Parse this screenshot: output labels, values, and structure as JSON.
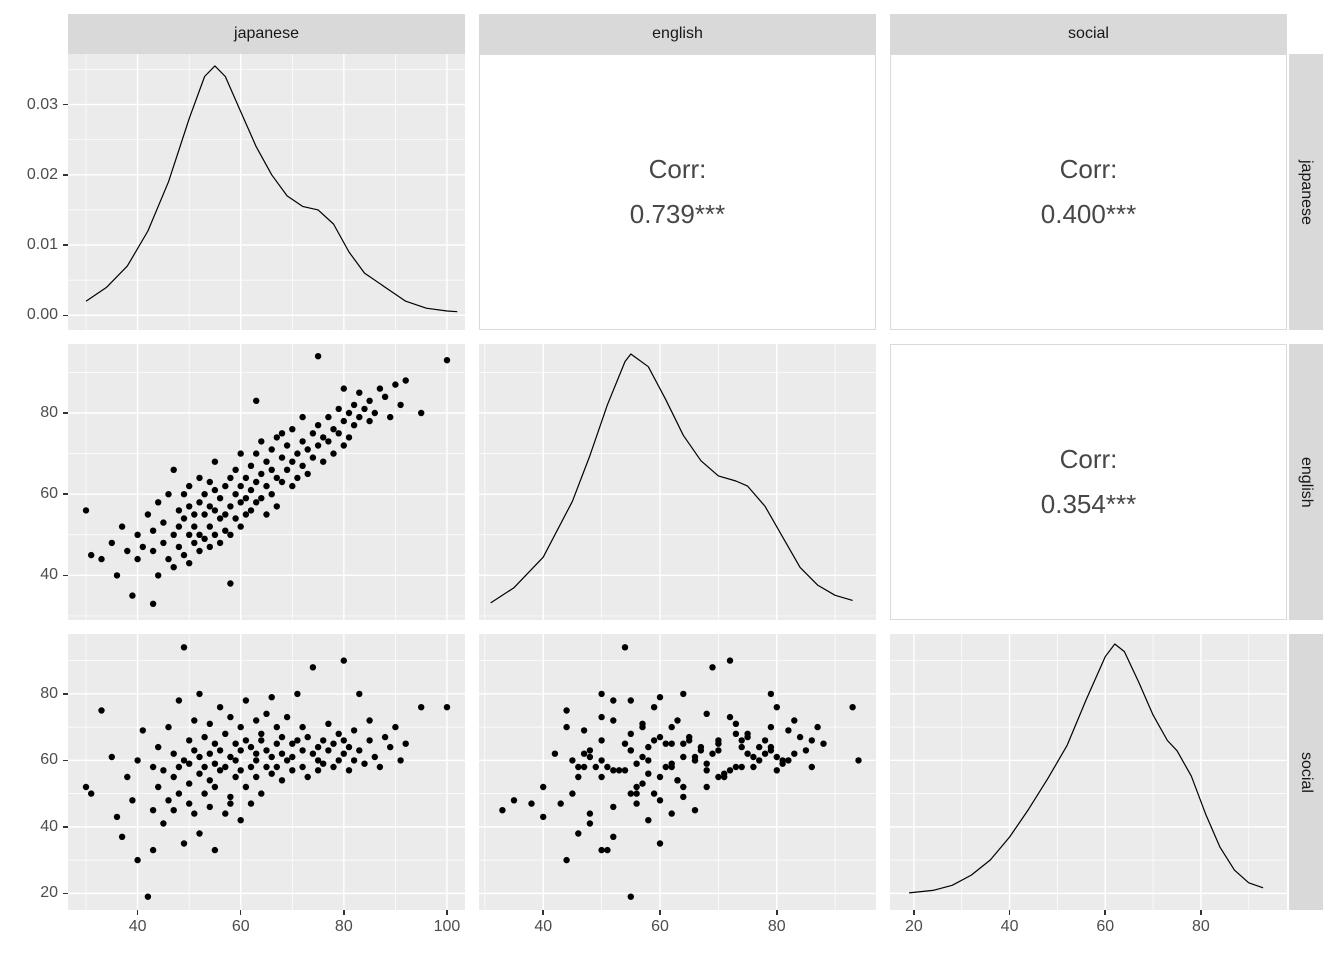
{
  "strips": {
    "cols": [
      "japanese",
      "english",
      "social"
    ],
    "rows": [
      "japanese",
      "english",
      "social"
    ]
  },
  "colors": {
    "panel_bg": "#EBEBEB",
    "strip_bg": "#D9D9D9",
    "grid_major": "#FFFFFF",
    "grid_minor": "#FFFFFF",
    "point": "#000000",
    "density_line": "#000000",
    "corr_text": "#474747",
    "tick_text": "#4D4D4D"
  },
  "chart_data": {
    "type": "scatter",
    "subtype": "scatterplot-matrix (ggpairs)",
    "variables": [
      "japanese",
      "english",
      "social"
    ],
    "grid": "on",
    "axes": {
      "japanese": {
        "min": 26.5,
        "max": 103.5,
        "tick_values": [
          40,
          60,
          80,
          100
        ],
        "tick_labels": [
          "40",
          "60",
          "80",
          "100"
        ]
      },
      "english": {
        "min": 29,
        "max": 97,
        "tick_values": [
          40,
          60,
          80
        ],
        "tick_labels": [
          "40",
          "60",
          "80"
        ]
      },
      "social": {
        "min": 15,
        "max": 98,
        "tick_values": [
          20,
          40,
          60,
          80
        ],
        "tick_labels": [
          "20",
          "40",
          "60",
          "80"
        ]
      },
      "density_japanese": {
        "min": -0.0021,
        "max": 0.0372,
        "tick_values": [
          0,
          0.01,
          0.02,
          0.03
        ],
        "tick_labels": [
          "0.00",
          "0.01",
          "0.02",
          "0.03"
        ]
      }
    },
    "correlations": [
      {
        "row": "japanese",
        "col": "english",
        "label": "Corr:",
        "value": "0.739***"
      },
      {
        "row": "japanese",
        "col": "social",
        "label": "Corr:",
        "value": "0.400***"
      },
      {
        "row": "english",
        "col": "social",
        "label": "Corr:",
        "value": "0.354***"
      }
    ],
    "densities": {
      "japanese": [
        [
          30,
          0.002
        ],
        [
          34,
          0.004
        ],
        [
          38,
          0.007
        ],
        [
          42,
          0.012
        ],
        [
          46,
          0.019
        ],
        [
          50,
          0.028
        ],
        [
          53,
          0.034
        ],
        [
          55,
          0.0355
        ],
        [
          57,
          0.034
        ],
        [
          60,
          0.029
        ],
        [
          63,
          0.024
        ],
        [
          66,
          0.02
        ],
        [
          69,
          0.017
        ],
        [
          72,
          0.0155
        ],
        [
          75,
          0.015
        ],
        [
          78,
          0.013
        ],
        [
          81,
          0.009
        ],
        [
          84,
          0.006
        ],
        [
          88,
          0.004
        ],
        [
          92,
          0.002
        ],
        [
          96,
          0.001
        ],
        [
          100,
          0.0006
        ],
        [
          102,
          0.0005
        ]
      ],
      "english": [
        [
          31,
          0.02
        ],
        [
          35,
          0.08
        ],
        [
          40,
          0.2
        ],
        [
          45,
          0.42
        ],
        [
          48,
          0.6
        ],
        [
          51,
          0.8
        ],
        [
          54,
          0.97
        ],
        [
          55,
          1.0
        ],
        [
          58,
          0.95
        ],
        [
          61,
          0.82
        ],
        [
          64,
          0.68
        ],
        [
          67,
          0.58
        ],
        [
          70,
          0.52
        ],
        [
          73,
          0.5
        ],
        [
          75,
          0.48
        ],
        [
          78,
          0.4
        ],
        [
          81,
          0.28
        ],
        [
          84,
          0.16
        ],
        [
          87,
          0.09
        ],
        [
          90,
          0.05
        ],
        [
          93,
          0.03
        ]
      ],
      "social": [
        [
          19,
          0.02
        ],
        [
          24,
          0.03
        ],
        [
          28,
          0.05
        ],
        [
          32,
          0.09
        ],
        [
          36,
          0.15
        ],
        [
          40,
          0.24
        ],
        [
          44,
          0.35
        ],
        [
          48,
          0.47
        ],
        [
          52,
          0.6
        ],
        [
          56,
          0.78
        ],
        [
          60,
          0.95
        ],
        [
          62,
          1.0
        ],
        [
          64,
          0.97
        ],
        [
          67,
          0.85
        ],
        [
          70,
          0.72
        ],
        [
          73,
          0.62
        ],
        [
          75,
          0.58
        ],
        [
          78,
          0.48
        ],
        [
          81,
          0.33
        ],
        [
          84,
          0.2
        ],
        [
          87,
          0.11
        ],
        [
          90,
          0.06
        ],
        [
          93,
          0.04
        ]
      ]
    },
    "points_columns": [
      "japanese",
      "english",
      "social"
    ],
    "points": [
      [
        30,
        56,
        52
      ],
      [
        31,
        45,
        50
      ],
      [
        33,
        44,
        75
      ],
      [
        35,
        48,
        61
      ],
      [
        36,
        40,
        43
      ],
      [
        37,
        52,
        37
      ],
      [
        38,
        46,
        55
      ],
      [
        39,
        35,
        48
      ],
      [
        40,
        50,
        60
      ],
      [
        40,
        44,
        30
      ],
      [
        41,
        47,
        69
      ],
      [
        42,
        55,
        19
      ],
      [
        43,
        33,
        45
      ],
      [
        43,
        46,
        58
      ],
      [
        43,
        51,
        33
      ],
      [
        44,
        40,
        52
      ],
      [
        44,
        58,
        64
      ],
      [
        45,
        48,
        41
      ],
      [
        45,
        53,
        57
      ],
      [
        46,
        44,
        70
      ],
      [
        46,
        60,
        48
      ],
      [
        47,
        50,
        55
      ],
      [
        47,
        42,
        62
      ],
      [
        47,
        66,
        45
      ],
      [
        48,
        52,
        78
      ],
      [
        48,
        47,
        58
      ],
      [
        48,
        56,
        50
      ],
      [
        49,
        54,
        94
      ],
      [
        49,
        45,
        60
      ],
      [
        49,
        60,
        35
      ],
      [
        50,
        50,
        66
      ],
      [
        50,
        57,
        53
      ],
      [
        50,
        43,
        47
      ],
      [
        50,
        62,
        59
      ],
      [
        51,
        55,
        63
      ],
      [
        51,
        48,
        44
      ],
      [
        51,
        52,
        72
      ],
      [
        52,
        58,
        56
      ],
      [
        52,
        50,
        80
      ],
      [
        52,
        64,
        61
      ],
      [
        52,
        46,
        38
      ],
      [
        53,
        55,
        50
      ],
      [
        53,
        60,
        67
      ],
      [
        53,
        49,
        58
      ],
      [
        54,
        52,
        46
      ],
      [
        54,
        57,
        71
      ],
      [
        54,
        63,
        54
      ],
      [
        54,
        47,
        62
      ],
      [
        55,
        56,
        59
      ],
      [
        55,
        50,
        33
      ],
      [
        55,
        61,
        65
      ],
      [
        55,
        68,
        52
      ],
      [
        56,
        54,
        57
      ],
      [
        56,
        59,
        76
      ],
      [
        56,
        48,
        63
      ],
      [
        57,
        62,
        44
      ],
      [
        57,
        55,
        68
      ],
      [
        57,
        51,
        58
      ],
      [
        58,
        38,
        47
      ],
      [
        58,
        57,
        61
      ],
      [
        58,
        64,
        49
      ],
      [
        58,
        50,
        73
      ],
      [
        59,
        60,
        55
      ],
      [
        59,
        54,
        65
      ],
      [
        59,
        66,
        60
      ],
      [
        60,
        58,
        42
      ],
      [
        60,
        62,
        70
      ],
      [
        60,
        52,
        57
      ],
      [
        60,
        70,
        63
      ],
      [
        61,
        59,
        66
      ],
      [
        61,
        64,
        52
      ],
      [
        61,
        55,
        78
      ],
      [
        62,
        61,
        58
      ],
      [
        62,
        67,
        64
      ],
      [
        62,
        56,
        47
      ],
      [
        63,
        63,
        72
      ],
      [
        63,
        58,
        60
      ],
      [
        63,
        70,
        55
      ],
      [
        63,
        83,
        62
      ],
      [
        64,
        65,
        66
      ],
      [
        64,
        59,
        50
      ],
      [
        64,
        73,
        68
      ],
      [
        65,
        62,
        58
      ],
      [
        65,
        68,
        74
      ],
      [
        65,
        55,
        63
      ],
      [
        66,
        66,
        61
      ],
      [
        66,
        71,
        56
      ],
      [
        66,
        60,
        79
      ],
      [
        67,
        64,
        65
      ],
      [
        67,
        74,
        58
      ],
      [
        67,
        57,
        70
      ],
      [
        68,
        69,
        62
      ],
      [
        68,
        63,
        54
      ],
      [
        68,
        75,
        67
      ],
      [
        69,
        66,
        60
      ],
      [
        69,
        72,
        73
      ],
      [
        70,
        68,
        57
      ],
      [
        70,
        62,
        65
      ],
      [
        70,
        76,
        61
      ],
      [
        71,
        70,
        66
      ],
      [
        71,
        64,
        80
      ],
      [
        72,
        73,
        58
      ],
      [
        72,
        67,
        63
      ],
      [
        72,
        79,
        70
      ],
      [
        73,
        71,
        55
      ],
      [
        73,
        65,
        67
      ],
      [
        74,
        75,
        62
      ],
      [
        74,
        69,
        88
      ],
      [
        75,
        77,
        64
      ],
      [
        75,
        72,
        57
      ],
      [
        75,
        94,
        60
      ],
      [
        76,
        74,
        66
      ],
      [
        76,
        68,
        59
      ],
      [
        77,
        79,
        63
      ],
      [
        77,
        73,
        71
      ],
      [
        78,
        76,
        58
      ],
      [
        78,
        70,
        65
      ],
      [
        79,
        81,
        60
      ],
      [
        79,
        75,
        68
      ],
      [
        80,
        78,
        62
      ],
      [
        80,
        72,
        90
      ],
      [
        80,
        86,
        66
      ],
      [
        81,
        80,
        57
      ],
      [
        81,
        74,
        64
      ],
      [
        82,
        82,
        69
      ],
      [
        82,
        77,
        60
      ],
      [
        83,
        79,
        80
      ],
      [
        83,
        85,
        63
      ],
      [
        84,
        81,
        59
      ],
      [
        85,
        78,
        66
      ],
      [
        85,
        83,
        72
      ],
      [
        86,
        80,
        61
      ],
      [
        87,
        86,
        58
      ],
      [
        88,
        84,
        67
      ],
      [
        89,
        79,
        64
      ],
      [
        90,
        87,
        70
      ],
      [
        91,
        82,
        60
      ],
      [
        92,
        88,
        65
      ],
      [
        95,
        80,
        76
      ],
      [
        100,
        93,
        76
      ]
    ]
  }
}
